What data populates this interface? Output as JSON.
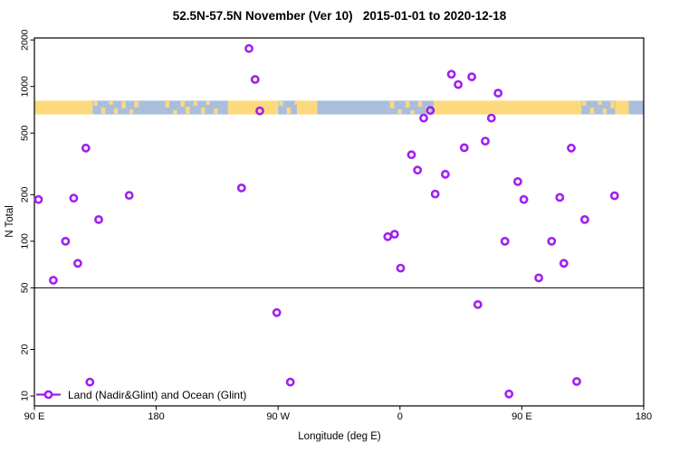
{
  "title": "52.5N-57.5N November (Ver 10)   2015-01-01 to 2020-12-18",
  "legend": {
    "label": "Land (Nadir&Glint) and Ocean (Glint)"
  },
  "colors": {
    "point": "#A020F0",
    "land": "#FCD97D",
    "ocean": "#A9BEDB",
    "axis": "#000000"
  },
  "chart_data": {
    "type": "scatter",
    "title": "52.5N-57.5N November (Ver 10)   2015-01-01 to 2020-12-18",
    "xlabel": "Longitude (deg E)",
    "ylabel": "N Total",
    "x_axis": {
      "range": [
        90,
        540
      ],
      "ticks": [
        90,
        180,
        270,
        360,
        450,
        540
      ],
      "tick_labels": [
        "90 E",
        "180",
        "90 W",
        "0",
        "90 E",
        "180"
      ]
    },
    "y_axis": {
      "scale": "log",
      "range": [
        8.6,
        2060
      ],
      "ticks": [
        2000,
        1000,
        500,
        200,
        100,
        50,
        20,
        10
      ]
    },
    "reference_line_n": 50,
    "map_band": {
      "n_range": [
        660,
        810
      ],
      "segments": [
        {
          "from": 90,
          "to": 133,
          "type": "land"
        },
        {
          "from": 133,
          "to": 168,
          "type": "mixed"
        },
        {
          "from": 168,
          "to": 186,
          "type": "ocean"
        },
        {
          "from": 186,
          "to": 228,
          "type": "mixed"
        },
        {
          "from": 228,
          "to": 233,
          "type": "ocean"
        },
        {
          "from": 233,
          "to": 270,
          "type": "land"
        },
        {
          "from": 270,
          "to": 284,
          "type": "mixed"
        },
        {
          "from": 284,
          "to": 299,
          "type": "land"
        },
        {
          "from": 299,
          "to": 352,
          "type": "ocean"
        },
        {
          "from": 352,
          "to": 385,
          "type": "mixed"
        },
        {
          "from": 385,
          "to": 494,
          "type": "land"
        },
        {
          "from": 494,
          "to": 519,
          "type": "mixed"
        },
        {
          "from": 519,
          "to": 529,
          "type": "land"
        },
        {
          "from": 529,
          "to": 540,
          "type": "ocean"
        }
      ]
    },
    "points": [
      {
        "lon": 93,
        "n": 186
      },
      {
        "lon": 104,
        "n": 56
      },
      {
        "lon": 113,
        "n": 100
      },
      {
        "lon": 119,
        "n": 190
      },
      {
        "lon": 122,
        "n": 72
      },
      {
        "lon": 128,
        "n": 400
      },
      {
        "lon": 131,
        "n": 12.3
      },
      {
        "lon": 137.5,
        "n": 138
      },
      {
        "lon": 160,
        "n": 198
      },
      {
        "lon": 243,
        "n": 221
      },
      {
        "lon": 248.5,
        "n": 1760
      },
      {
        "lon": 253,
        "n": 1110
      },
      {
        "lon": 256.5,
        "n": 695
      },
      {
        "lon": 269,
        "n": 34.6
      },
      {
        "lon": 279,
        "n": 12.3
      },
      {
        "lon": 351,
        "n": 107
      },
      {
        "lon": 356,
        "n": 111
      },
      {
        "lon": 360.5,
        "n": 67
      },
      {
        "lon": 368.5,
        "n": 362
      },
      {
        "lon": 373,
        "n": 288
      },
      {
        "lon": 377.5,
        "n": 625
      },
      {
        "lon": 382.5,
        "n": 700
      },
      {
        "lon": 386,
        "n": 202
      },
      {
        "lon": 393.5,
        "n": 271
      },
      {
        "lon": 398,
        "n": 1200
      },
      {
        "lon": 403,
        "n": 1030
      },
      {
        "lon": 407.5,
        "n": 402
      },
      {
        "lon": 413,
        "n": 1155
      },
      {
        "lon": 417.5,
        "n": 39
      },
      {
        "lon": 423,
        "n": 444
      },
      {
        "lon": 427.5,
        "n": 625
      },
      {
        "lon": 432.5,
        "n": 906
      },
      {
        "lon": 437.5,
        "n": 100
      },
      {
        "lon": 440.5,
        "n": 10.3
      },
      {
        "lon": 447,
        "n": 243
      },
      {
        "lon": 451.5,
        "n": 186
      },
      {
        "lon": 462.5,
        "n": 58
      },
      {
        "lon": 472,
        "n": 100
      },
      {
        "lon": 478,
        "n": 192
      },
      {
        "lon": 481,
        "n": 72
      },
      {
        "lon": 486.5,
        "n": 400
      },
      {
        "lon": 490.5,
        "n": 12.4
      },
      {
        "lon": 496.5,
        "n": 138
      },
      {
        "lon": 518.5,
        "n": 197
      }
    ]
  }
}
